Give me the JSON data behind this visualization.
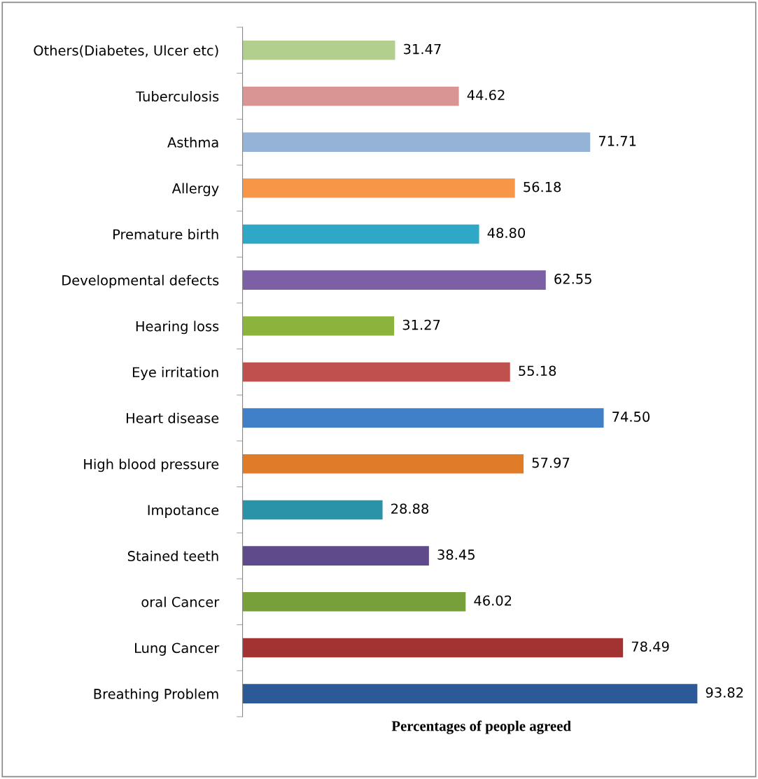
{
  "chart_data": {
    "type": "bar",
    "orientation": "horizontal",
    "xlabel": "Percentages of people agreed",
    "categories": [
      "Others(Diabetes, Ulcer etc)",
      "Tuberculosis",
      "Asthma",
      "Allergy",
      "Premature birth",
      "Developmental defects",
      "Hearing loss",
      "Eye irritation",
      "Heart disease",
      "High blood pressure",
      "Impotance",
      "Stained teeth",
      "oral Cancer",
      "Lung Cancer",
      "Breathing Problem"
    ],
    "values": [
      31.47,
      44.62,
      71.71,
      56.18,
      48.8,
      62.55,
      31.27,
      55.18,
      74.5,
      57.97,
      28.88,
      38.45,
      46.02,
      78.49,
      93.82
    ],
    "value_labels": [
      "31.47",
      "44.62",
      "71.71",
      "56.18",
      "48.80",
      "62.55",
      "31.27",
      "55.18",
      "74.50",
      "57.97",
      "28.88",
      "38.45",
      "46.02",
      "78.49",
      "93.82"
    ],
    "colors": [
      "#b3cf8e",
      "#d99594",
      "#95b3d7",
      "#f79646",
      "#2ea8c6",
      "#7d5fa6",
      "#8cb43c",
      "#c0504d",
      "#3f80c8",
      "#e07b28",
      "#2a93a8",
      "#5f4a8b",
      "#77a03a",
      "#a33333",
      "#2c5a96"
    ],
    "tick_labels": "y",
    "grid": false,
    "legend": false
  }
}
